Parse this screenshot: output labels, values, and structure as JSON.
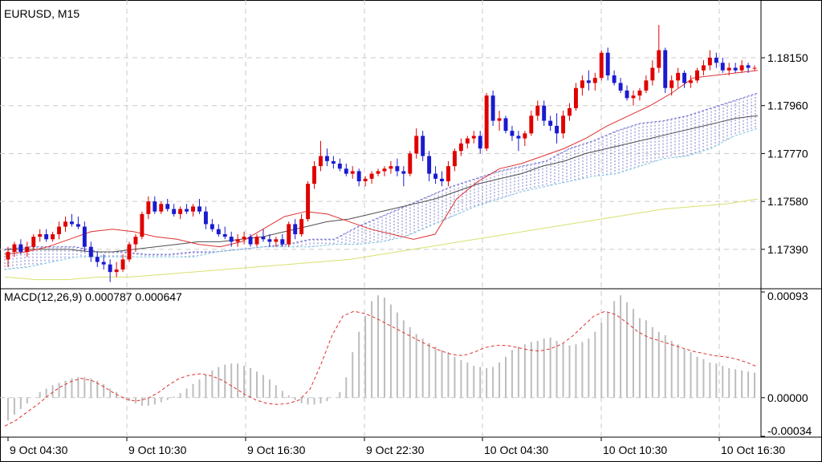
{
  "chart_data": [
    {
      "type": "candlestick",
      "title": "EURUSD, M15",
      "ylim": [
        1.1724,
        1.1836
      ],
      "y_ticks": [
        "1.18150",
        "1.17960",
        "1.17770",
        "1.17580",
        "1.17390"
      ],
      "x_ticks": [
        "9 Oct 04:30",
        "9 Oct 10:30",
        "9 Oct 16:30",
        "9 Oct 22:30",
        "10 Oct 04:30",
        "10 Oct 10:30",
        "10 Oct 16:30"
      ],
      "grid": true,
      "colors": {
        "bull": "#e00000",
        "bear": "#1a1ad0",
        "ma_fast": "#e03030",
        "ma_mid": "#505050",
        "ma_slow": "#d8e070",
        "cloud": "#5050c0"
      },
      "candles": [
        [
          1.1735,
          1.174,
          1.1732,
          1.1738
        ],
        [
          1.1738,
          1.1742,
          1.1736,
          1.1741
        ],
        [
          1.1741,
          1.1743,
          1.1737,
          1.1738
        ],
        [
          1.1738,
          1.1742,
          1.1736,
          1.174
        ],
        [
          1.174,
          1.1745,
          1.1739,
          1.1744
        ],
        [
          1.1744,
          1.1747,
          1.1742,
          1.1745
        ],
        [
          1.1745,
          1.1747,
          1.1742,
          1.1743
        ],
        [
          1.1743,
          1.1746,
          1.1742,
          1.1745
        ],
        [
          1.1745,
          1.175,
          1.1743,
          1.1748
        ],
        [
          1.1748,
          1.1752,
          1.1746,
          1.175
        ],
        [
          1.175,
          1.1753,
          1.1748,
          1.1749
        ],
        [
          1.1749,
          1.1752,
          1.1747,
          1.1748
        ],
        [
          1.1748,
          1.175,
          1.1738,
          1.174
        ],
        [
          1.174,
          1.1742,
          1.1734,
          1.1736
        ],
        [
          1.1736,
          1.1738,
          1.1732,
          1.1734
        ],
        [
          1.1734,
          1.1737,
          1.1731,
          1.1733
        ],
        [
          1.1733,
          1.1735,
          1.1726,
          1.173
        ],
        [
          1.173,
          1.1734,
          1.1728,
          1.1731
        ],
        [
          1.1731,
          1.1737,
          1.173,
          1.1735
        ],
        [
          1.1735,
          1.1742,
          1.1734,
          1.1741
        ],
        [
          1.1741,
          1.1745,
          1.1738,
          1.1744
        ],
        [
          1.1744,
          1.1754,
          1.1743,
          1.1753
        ],
        [
          1.1753,
          1.176,
          1.1751,
          1.1758
        ],
        [
          1.1758,
          1.176,
          1.1753,
          1.1754
        ],
        [
          1.1754,
          1.1758,
          1.1753,
          1.1757
        ],
        [
          1.1757,
          1.1759,
          1.1754,
          1.1755
        ],
        [
          1.1755,
          1.1757,
          1.1752,
          1.1753
        ],
        [
          1.1753,
          1.1756,
          1.1751,
          1.1755
        ],
        [
          1.1755,
          1.1757,
          1.1753,
          1.1754
        ],
        [
          1.1754,
          1.1757,
          1.1752,
          1.1756
        ],
        [
          1.1756,
          1.1759,
          1.1753,
          1.1754
        ],
        [
          1.1754,
          1.1756,
          1.1747,
          1.1749
        ],
        [
          1.1749,
          1.1751,
          1.1746,
          1.1747
        ],
        [
          1.1747,
          1.1749,
          1.1744,
          1.1745
        ],
        [
          1.1745,
          1.1748,
          1.1743,
          1.1744
        ],
        [
          1.1744,
          1.1746,
          1.174,
          1.1742
        ],
        [
          1.1742,
          1.1745,
          1.174,
          1.1743
        ],
        [
          1.1743,
          1.1746,
          1.1741,
          1.1744
        ],
        [
          1.1744,
          1.1745,
          1.174,
          1.1741
        ],
        [
          1.1741,
          1.1745,
          1.174,
          1.1744
        ],
        [
          1.1744,
          1.1747,
          1.1742,
          1.1743
        ],
        [
          1.1743,
          1.1745,
          1.174,
          1.1742
        ],
        [
          1.1742,
          1.1744,
          1.174,
          1.1743
        ],
        [
          1.1743,
          1.1745,
          1.174,
          1.1741
        ],
        [
          1.1741,
          1.175,
          1.174,
          1.1749
        ],
        [
          1.1749,
          1.1751,
          1.1743,
          1.1745
        ],
        [
          1.1745,
          1.1753,
          1.1744,
          1.1751
        ],
        [
          1.1751,
          1.1766,
          1.175,
          1.1765
        ],
        [
          1.1765,
          1.1774,
          1.1763,
          1.1772
        ],
        [
          1.1772,
          1.1782,
          1.177,
          1.1776
        ],
        [
          1.1776,
          1.1779,
          1.1772,
          1.1774
        ],
        [
          1.1774,
          1.1776,
          1.1771,
          1.1773
        ],
        [
          1.1773,
          1.1775,
          1.177,
          1.1771
        ],
        [
          1.1771,
          1.1773,
          1.1768,
          1.1769
        ],
        [
          1.1769,
          1.1772,
          1.1767,
          1.177
        ],
        [
          1.177,
          1.1771,
          1.1764,
          1.1766
        ],
        [
          1.1766,
          1.1768,
          1.1764,
          1.1767
        ],
        [
          1.1767,
          1.177,
          1.1765,
          1.1769
        ],
        [
          1.1769,
          1.1771,
          1.1768,
          1.177
        ],
        [
          1.177,
          1.1772,
          1.1768,
          1.1771
        ],
        [
          1.1771,
          1.1774,
          1.1769,
          1.1772
        ],
        [
          1.1772,
          1.1775,
          1.1768,
          1.177
        ],
        [
          1.177,
          1.1772,
          1.1764,
          1.1769
        ],
        [
          1.1769,
          1.1778,
          1.1768,
          1.1777
        ],
        [
          1.1777,
          1.1787,
          1.1775,
          1.1784
        ],
        [
          1.1784,
          1.1786,
          1.1774,
          1.1776
        ],
        [
          1.1776,
          1.1778,
          1.1766,
          1.1769
        ],
        [
          1.1769,
          1.1772,
          1.1765,
          1.1767
        ],
        [
          1.1767,
          1.177,
          1.1764,
          1.1766
        ],
        [
          1.1766,
          1.1774,
          1.1764,
          1.1772
        ],
        [
          1.1772,
          1.1779,
          1.177,
          1.1778
        ],
        [
          1.1778,
          1.1783,
          1.1776,
          1.1781
        ],
        [
          1.1781,
          1.1784,
          1.1779,
          1.1783
        ],
        [
          1.1783,
          1.1786,
          1.1781,
          1.1784
        ],
        [
          1.1784,
          1.1786,
          1.1777,
          1.1779
        ],
        [
          1.1779,
          1.1801,
          1.1778,
          1.18
        ],
        [
          1.18,
          1.1802,
          1.1788,
          1.179
        ],
        [
          1.179,
          1.1794,
          1.1786,
          1.1791
        ],
        [
          1.1791,
          1.1792,
          1.1785,
          1.1786
        ],
        [
          1.1786,
          1.1788,
          1.1782,
          1.1784
        ],
        [
          1.1784,
          1.1786,
          1.1778,
          1.1783
        ],
        [
          1.1783,
          1.1786,
          1.178,
          1.1785
        ],
        [
          1.1785,
          1.1794,
          1.1784,
          1.1792
        ],
        [
          1.1792,
          1.1798,
          1.179,
          1.1796
        ],
        [
          1.1796,
          1.1798,
          1.1788,
          1.179
        ],
        [
          1.179,
          1.1792,
          1.1786,
          1.1788
        ],
        [
          1.1788,
          1.1793,
          1.1781,
          1.1785
        ],
        [
          1.1785,
          1.1794,
          1.1783,
          1.1792
        ],
        [
          1.1792,
          1.1797,
          1.179,
          1.1795
        ],
        [
          1.1795,
          1.1805,
          1.1794,
          1.1803
        ],
        [
          1.1803,
          1.1808,
          1.18,
          1.1806
        ],
        [
          1.1806,
          1.181,
          1.1802,
          1.1805
        ],
        [
          1.1805,
          1.1809,
          1.1802,
          1.1807
        ],
        [
          1.1807,
          1.1818,
          1.1806,
          1.1817
        ],
        [
          1.1817,
          1.1819,
          1.1806,
          1.1808
        ],
        [
          1.1808,
          1.181,
          1.1804,
          1.1805
        ],
        [
          1.1805,
          1.1807,
          1.1801,
          1.1802
        ],
        [
          1.1802,
          1.1804,
          1.1798,
          1.1799
        ],
        [
          1.1799,
          1.1802,
          1.1796,
          1.18
        ],
        [
          1.18,
          1.1803,
          1.1798,
          1.1802
        ],
        [
          1.1802,
          1.1808,
          1.1801,
          1.1806
        ],
        [
          1.1806,
          1.1814,
          1.1804,
          1.1811
        ],
        [
          1.1811,
          1.1828,
          1.1809,
          1.1818
        ],
        [
          1.1818,
          1.1819,
          1.1801,
          1.1803
        ],
        [
          1.1803,
          1.1808,
          1.18,
          1.1806
        ],
        [
          1.1806,
          1.1811,
          1.1803,
          1.1809
        ],
        [
          1.1809,
          1.181,
          1.1803,
          1.1805
        ],
        [
          1.1805,
          1.1808,
          1.1803,
          1.1806
        ],
        [
          1.1806,
          1.1811,
          1.1805,
          1.181
        ],
        [
          1.181,
          1.1814,
          1.1808,
          1.1812
        ],
        [
          1.1812,
          1.1818,
          1.181,
          1.1815
        ],
        [
          1.1815,
          1.1817,
          1.1811,
          1.1813
        ],
        [
          1.1813,
          1.1815,
          1.1809,
          1.181
        ],
        [
          1.181,
          1.1813,
          1.1808,
          1.1811
        ],
        [
          1.1811,
          1.1813,
          1.1809,
          1.181
        ],
        [
          1.181,
          1.1814,
          1.1809,
          1.1812
        ],
        [
          1.1812,
          1.1813,
          1.1809,
          1.1811
        ],
        [
          1.1811,
          1.1812,
          1.181,
          1.1811
        ]
      ],
      "ma_fast": [
        1.1737,
        1.1738,
        1.174,
        1.1743,
        1.1746,
        1.1747,
        1.1746,
        1.1744,
        1.1743,
        1.1741,
        1.174,
        1.1742,
        1.1747,
        1.1752,
        1.1754,
        1.1753,
        1.175,
        1.1747,
        1.1745,
        1.1743,
        1.1745,
        1.1759,
        1.1766,
        1.1771,
        1.1773,
        1.1776,
        1.1779,
        1.1783,
        1.1788,
        1.1792,
        1.1796,
        1.1801,
        1.1807,
        1.1808,
        1.1809,
        1.181
      ],
      "ma_mid": [
        1.1739,
        1.1739,
        1.1739,
        1.1739,
        1.1738,
        1.1738,
        1.1739,
        1.174,
        1.1741,
        1.1742,
        1.1742,
        1.1743,
        1.1744,
        1.1746,
        1.1748,
        1.175,
        1.1751,
        1.1753,
        1.1755,
        1.1757,
        1.1759,
        1.1762,
        1.1765,
        1.1767,
        1.1769,
        1.1772,
        1.1774,
        1.1777,
        1.1779,
        1.1781,
        1.1783,
        1.1785,
        1.1787,
        1.1789,
        1.1791,
        1.1792
      ],
      "ma_slow": [
        1.1728,
        1.1727,
        1.1727,
        1.1728,
        1.1728,
        1.1729,
        1.173,
        1.1731,
        1.1732,
        1.1733,
        1.1734,
        1.1735,
        1.1737,
        1.1739,
        1.1741,
        1.1743,
        1.1745,
        1.1747,
        1.1749,
        1.1751,
        1.1753,
        1.1755,
        1.1756,
        1.1757,
        1.1759
      ],
      "cloud_upper": [
        1.1739,
        1.174,
        1.174,
        1.174,
        1.1738,
        1.1738,
        1.1737,
        1.1737,
        1.1738,
        1.1738,
        1.1739,
        1.174,
        1.1741,
        1.1743,
        1.1743,
        1.1748,
        1.1752,
        1.1756,
        1.176,
        1.1764,
        1.1767,
        1.177,
        1.1772,
        1.1774,
        1.1779,
        1.1782,
        1.1786,
        1.1789,
        1.179,
        1.1792,
        1.1795,
        1.1798,
        1.1801
      ],
      "cloud_lower": [
        1.1731,
        1.1732,
        1.1734,
        1.1736,
        1.1736,
        1.1736,
        1.1736,
        1.1736,
        1.1736,
        1.1738,
        1.1739,
        1.174,
        1.174,
        1.174,
        1.1741,
        1.1741,
        1.1742,
        1.1744,
        1.1748,
        1.1752,
        1.1756,
        1.1759,
        1.1762,
        1.1764,
        1.1766,
        1.1768,
        1.1769,
        1.1772,
        1.1775,
        1.1776,
        1.1779,
        1.1784,
        1.1787
      ]
    },
    {
      "type": "bar",
      "label": "MACD(12,26,9) 0.000787 0.000647",
      "ylim": [
        -0.00034,
        0.00093
      ],
      "y_ticks": [
        "0.00093",
        "0.00000",
        "-0.00034"
      ],
      "macd_values": [
        -0.0002,
        -0.00015,
        -0.0001,
        -5e-05,
        0.0,
        5e-05,
        8e-05,
        0.00011,
        0.00013,
        0.00015,
        0.00017,
        0.00018,
        0.00018,
        0.00017,
        0.00015,
        0.00012,
        8e-05,
        5e-05,
        1e-05,
        -3e-05,
        -5e-05,
        -7e-05,
        -7e-05,
        -6e-05,
        -4e-05,
        -2e-05,
        1e-05,
        4e-05,
        8e-05,
        0.00012,
        0.00016,
        0.0002,
        0.00024,
        0.00027,
        0.00029,
        0.0003,
        0.0003,
        0.00028,
        0.00026,
        0.00023,
        0.0002,
        0.00016,
        0.00011,
        6e-05,
        2e-05,
        -2e-05,
        -5e-05,
        -6e-05,
        -6e-05,
        -5e-05,
        -3e-05,
        0.0,
        5e-05,
        0.00018,
        0.0004,
        0.00058,
        0.00072,
        0.00085,
        0.0009,
        0.00088,
        0.00082,
        0.00075,
        0.00068,
        0.00062,
        0.00056,
        0.00052,
        0.00048,
        0.00045,
        0.00042,
        0.0004,
        0.00036,
        0.00033,
        0.00031,
        0.00028,
        0.00027,
        0.00026,
        0.00027,
        0.00031,
        0.00036,
        0.00042,
        0.00045,
        0.00047,
        0.00049,
        0.0005,
        0.00052,
        0.00053,
        0.0005,
        0.00048,
        0.00046,
        0.00047,
        0.00049,
        0.00052,
        0.00058,
        0.00066,
        0.00075,
        0.00085,
        0.0009,
        0.00084,
        0.00078,
        0.0007,
        0.00068,
        0.00062,
        0.00058,
        0.00055,
        0.0005,
        0.00047,
        0.00043,
        0.0004,
        0.00036,
        0.00034,
        0.00031,
        0.0003,
        0.00028,
        0.00026,
        0.00025,
        0.00024,
        0.00023,
        0.00022
      ],
      "signal_values": [
        -0.00025,
        -0.0002,
        -0.00013,
        -6e-05,
        2e-05,
        9e-05,
        0.00014,
        0.00017,
        0.00015,
        0.0001,
        4e-05,
        -1e-05,
        -3e-05,
        -1e-05,
        4e-05,
        0.00011,
        0.00017,
        0.0002,
        0.00021,
        0.00019,
        0.00015,
        9e-05,
        3e-05,
        -2e-05,
        -5e-05,
        -6e-05,
        -5e-05,
        -2e-05,
        8e-05,
        0.0003,
        0.00055,
        0.00072,
        0.00076,
        0.00074,
        0.0007,
        0.00065,
        0.0006,
        0.00055,
        0.0005,
        0.00045,
        0.00041,
        0.00038,
        0.00037,
        0.0004,
        0.00044,
        0.00046,
        0.00046,
        0.00044,
        0.00042,
        0.00041,
        0.00043,
        0.00047,
        0.00054,
        0.00063,
        0.00072,
        0.00076,
        0.00073,
        0.00066,
        0.00058,
        0.00053,
        0.0005,
        0.00047,
        0.00044,
        0.00041,
        0.00039,
        0.00037,
        0.00036,
        0.00034,
        0.00031,
        0.00027
      ]
    }
  ]
}
